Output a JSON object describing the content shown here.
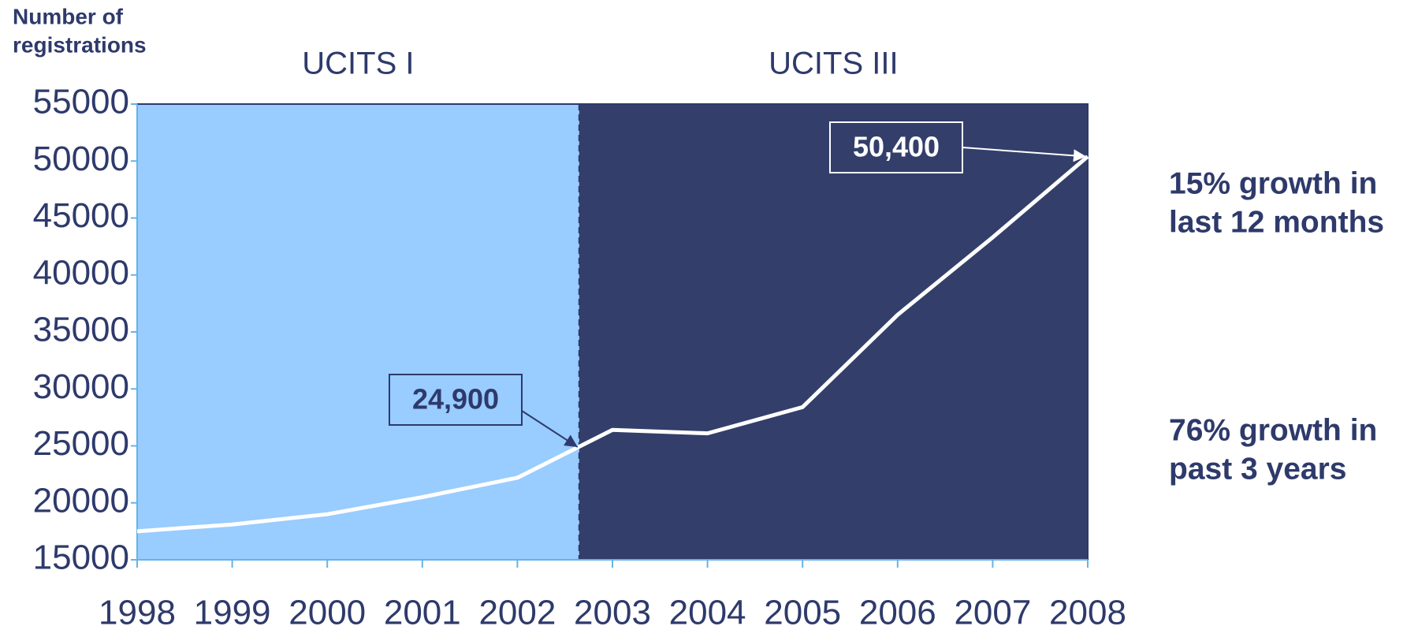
{
  "chart_data": {
    "type": "line",
    "y_axis_label": [
      "Number of",
      "registrations"
    ],
    "regions": [
      {
        "name": "UCITS I",
        "from": 1998,
        "to": 2002.65,
        "color": "#99ccff"
      },
      {
        "name": "UCITS III",
        "from": 2002.65,
        "to": 2008,
        "color": "#333f6a"
      }
    ],
    "x": [
      1998,
      1999,
      2000,
      2001,
      2002,
      2003,
      2004,
      2005,
      2006,
      2007,
      2008
    ],
    "series": [
      {
        "name": "Registrations",
        "color": "#ffffff",
        "values": [
          17500,
          18100,
          19000,
          20500,
          22200,
          26400,
          26100,
          28400,
          36500,
          43300,
          50400
        ]
      }
    ],
    "xlim": [
      1998,
      2008
    ],
    "xticks": [
      1998,
      1999,
      2000,
      2001,
      2002,
      2003,
      2004,
      2005,
      2006,
      2007,
      2008
    ],
    "ylim": [
      15000,
      55000
    ],
    "yticks": [
      15000,
      20000,
      25000,
      30000,
      35000,
      40000,
      45000,
      50000,
      55000
    ],
    "annotations": [
      {
        "text": "24,900",
        "x": 2002.65,
        "y": 24900,
        "color": "#99ccff"
      },
      {
        "text": "50,400",
        "x": 2008,
        "y": 50400,
        "color": "#333f6a"
      }
    ],
    "notes": [
      [
        "15% growth in",
        "last 12 months"
      ],
      [
        "76% growth in",
        "past 3 years"
      ]
    ]
  }
}
